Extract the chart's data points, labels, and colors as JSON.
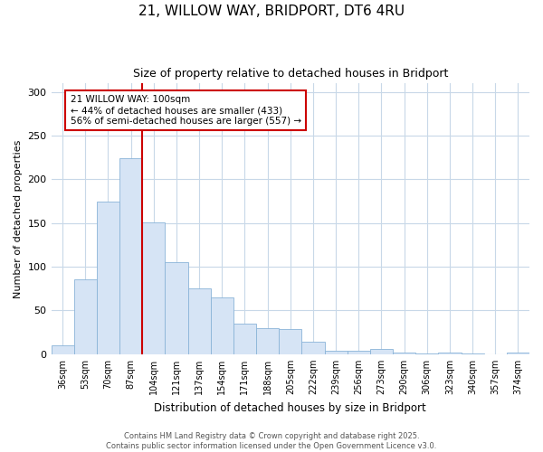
{
  "title": "21, WILLOW WAY, BRIDPORT, DT6 4RU",
  "subtitle": "Size of property relative to detached houses in Bridport",
  "xlabel": "Distribution of detached houses by size in Bridport",
  "ylabel": "Number of detached properties",
  "categories": [
    "36sqm",
    "53sqm",
    "70sqm",
    "87sqm",
    "104sqm",
    "121sqm",
    "137sqm",
    "154sqm",
    "171sqm",
    "188sqm",
    "205sqm",
    "222sqm",
    "239sqm",
    "256sqm",
    "273sqm",
    "290sqm",
    "306sqm",
    "323sqm",
    "340sqm",
    "357sqm",
    "374sqm"
  ],
  "values": [
    10,
    86,
    175,
    224,
    151,
    105,
    75,
    65,
    35,
    30,
    29,
    14,
    4,
    4,
    6,
    2,
    1,
    2,
    1,
    0,
    2
  ],
  "bar_color": "#d6e4f5",
  "bar_edge_color": "#8ab4d8",
  "red_line_color": "#cc0000",
  "annotation_box_text_line1": "21 WILLOW WAY: 100sqm",
  "annotation_box_text_line2": "← 44% of detached houses are smaller (433)",
  "annotation_box_text_line3": "56% of semi-detached houses are larger (557) →",
  "annotation_box_color": "#cc0000",
  "annotation_box_fill": "#ffffff",
  "ylim": [
    0,
    310
  ],
  "yticks": [
    0,
    50,
    100,
    150,
    200,
    250,
    300
  ],
  "background_color": "#ffffff",
  "plot_bg_color": "#ffffff",
  "grid_color": "#c8d8e8",
  "title_fontsize": 11,
  "subtitle_fontsize": 9,
  "footer_line1": "Contains HM Land Registry data © Crown copyright and database right 2025.",
  "footer_line2": "Contains public sector information licensed under the Open Government Licence v3.0."
}
